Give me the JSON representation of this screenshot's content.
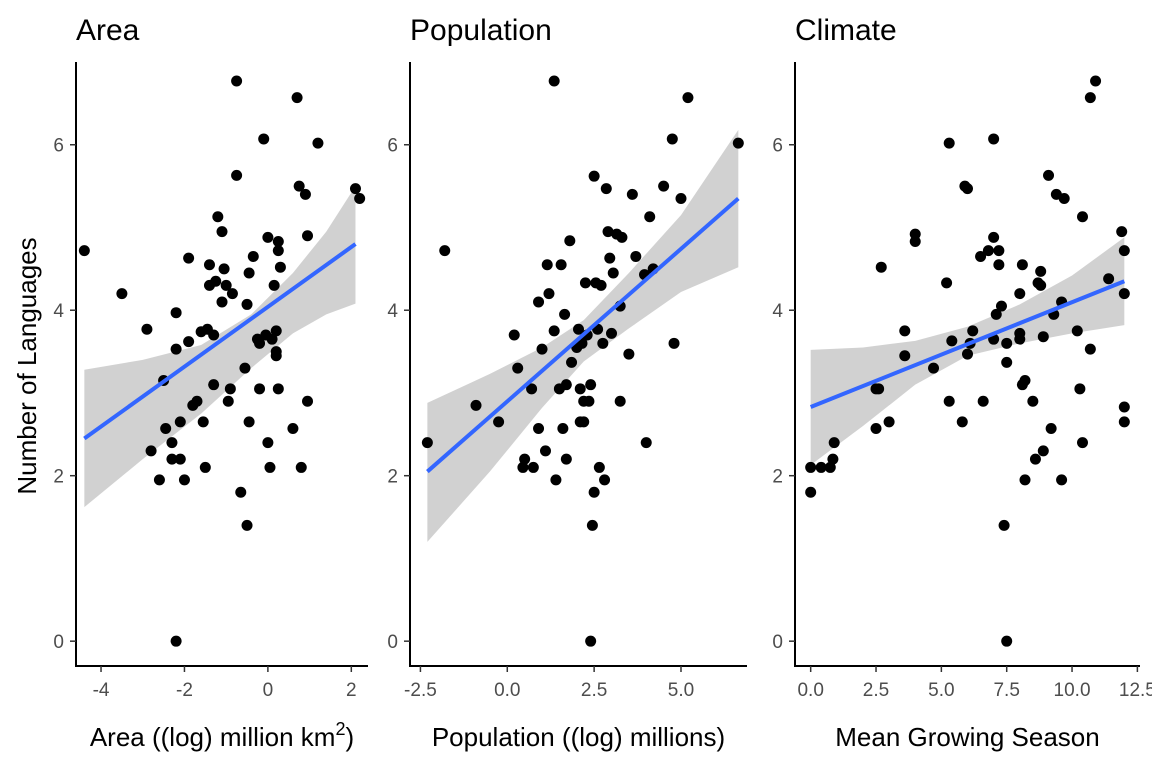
{
  "ylabel": "Number of Languages",
  "chart_data": [
    {
      "type": "scatter",
      "title": "Area",
      "xlabel_main": "Area ((log) million km",
      "xlabel_sup": "2",
      "xlabel_tail": ")",
      "ylabel": "Number of Languages",
      "xlim": [
        -4.6,
        2.4
      ],
      "ylim": [
        -0.3,
        7.0
      ],
      "xticks": [
        -4,
        -2,
        0,
        2
      ],
      "xtick_labels": [
        "-4",
        "-2",
        "0",
        "2"
      ],
      "yticks": [
        0,
        2,
        4,
        6
      ],
      "ytick_labels": [
        "0",
        "2",
        "4",
        "6"
      ],
      "fit": {
        "x": [
          -4.4,
          2.1
        ],
        "y": [
          2.45,
          4.8
        ]
      },
      "band": {
        "x": [
          -4.4,
          -3.0,
          -1.6,
          -0.4,
          0.6,
          1.4,
          2.1
        ],
        "upper": [
          3.28,
          3.4,
          3.58,
          3.95,
          4.45,
          4.95,
          5.5
        ],
        "lower": [
          1.62,
          2.2,
          2.75,
          3.3,
          3.72,
          3.95,
          4.08
        ]
      },
      "points": [
        {
          "x": -4.4,
          "y": 4.72
        },
        {
          "x": -3.5,
          "y": 4.2
        },
        {
          "x": -2.9,
          "y": 3.77
        },
        {
          "x": -2.8,
          "y": 2.3
        },
        {
          "x": -2.6,
          "y": 1.95
        },
        {
          "x": -2.5,
          "y": 3.15
        },
        {
          "x": -2.45,
          "y": 2.57
        },
        {
          "x": -2.3,
          "y": 2.2
        },
        {
          "x": -2.3,
          "y": 2.4
        },
        {
          "x": -2.2,
          "y": 3.53
        },
        {
          "x": -2.2,
          "y": 3.97
        },
        {
          "x": -2.1,
          "y": 2.2
        },
        {
          "x": -2.1,
          "y": 2.65
        },
        {
          "x": -2.2,
          "y": 0.0
        },
        {
          "x": -2.0,
          "y": 1.95
        },
        {
          "x": -1.9,
          "y": 3.62
        },
        {
          "x": -1.9,
          "y": 4.63
        },
        {
          "x": -1.8,
          "y": 2.85
        },
        {
          "x": -1.7,
          "y": 2.9
        },
        {
          "x": -1.6,
          "y": 3.74
        },
        {
          "x": -1.55,
          "y": 2.65
        },
        {
          "x": -1.5,
          "y": 2.1
        },
        {
          "x": -1.45,
          "y": 3.77
        },
        {
          "x": -1.4,
          "y": 4.3
        },
        {
          "x": -1.4,
          "y": 4.55
        },
        {
          "x": -1.3,
          "y": 3.7
        },
        {
          "x": -1.3,
          "y": 3.1
        },
        {
          "x": -1.25,
          "y": 4.35
        },
        {
          "x": -1.2,
          "y": 5.13
        },
        {
          "x": -1.1,
          "y": 4.95
        },
        {
          "x": -1.1,
          "y": 4.1
        },
        {
          "x": -1.05,
          "y": 4.5
        },
        {
          "x": -1.0,
          "y": 4.3
        },
        {
          "x": -0.95,
          "y": 2.9
        },
        {
          "x": -0.9,
          "y": 3.05
        },
        {
          "x": -0.85,
          "y": 4.2
        },
        {
          "x": -0.75,
          "y": 5.63
        },
        {
          "x": -0.75,
          "y": 6.77
        },
        {
          "x": -0.65,
          "y": 1.8
        },
        {
          "x": -0.55,
          "y": 3.3
        },
        {
          "x": -0.5,
          "y": 4.07
        },
        {
          "x": -0.5,
          "y": 1.4
        },
        {
          "x": -0.45,
          "y": 2.65
        },
        {
          "x": -0.45,
          "y": 4.45
        },
        {
          "x": -0.35,
          "y": 4.65
        },
        {
          "x": -0.25,
          "y": 3.65
        },
        {
          "x": -0.2,
          "y": 3.05
        },
        {
          "x": -0.2,
          "y": 3.6
        },
        {
          "x": -0.1,
          "y": 6.07
        },
        {
          "x": -0.05,
          "y": 3.7
        },
        {
          "x": 0.0,
          "y": 2.4
        },
        {
          "x": 0.0,
          "y": 4.88
        },
        {
          "x": 0.05,
          "y": 2.1
        },
        {
          "x": 0.1,
          "y": 3.65
        },
        {
          "x": 0.15,
          "y": 4.3
        },
        {
          "x": 0.2,
          "y": 3.5
        },
        {
          "x": 0.2,
          "y": 3.75
        },
        {
          "x": 0.2,
          "y": 3.45
        },
        {
          "x": 0.25,
          "y": 3.05
        },
        {
          "x": 0.25,
          "y": 4.72
        },
        {
          "x": 0.25,
          "y": 4.83
        },
        {
          "x": 0.3,
          "y": 4.52
        },
        {
          "x": 0.6,
          "y": 2.57
        },
        {
          "x": 0.7,
          "y": 6.57
        },
        {
          "x": 0.75,
          "y": 5.5
        },
        {
          "x": 0.8,
          "y": 2.1
        },
        {
          "x": 0.9,
          "y": 5.4
        },
        {
          "x": 0.95,
          "y": 2.9
        },
        {
          "x": 0.95,
          "y": 4.9
        },
        {
          "x": 1.2,
          "y": 6.02
        },
        {
          "x": 2.1,
          "y": 5.47
        },
        {
          "x": 2.2,
          "y": 5.35
        }
      ]
    },
    {
      "type": "scatter",
      "title": "Population",
      "xlabel_main": "Population ((log) millions)",
      "xlabel_sup": "",
      "xlabel_tail": "",
      "xlim": [
        -2.8,
        6.9
      ],
      "ylim": [
        -0.3,
        7.0
      ],
      "xticks": [
        -2.5,
        0,
        2.5,
        5
      ],
      "xtick_labels": [
        "-2.5",
        "0.0",
        "2.5",
        "5.0"
      ],
      "yticks": [
        0,
        2,
        4,
        6
      ],
      "ytick_labels": [
        "0",
        "2",
        "4",
        "6"
      ],
      "fit": {
        "x": [
          -2.3,
          6.65
        ],
        "y": [
          2.05,
          5.35
        ]
      },
      "band": {
        "x": [
          -2.3,
          -0.5,
          1.0,
          2.2,
          3.5,
          5.0,
          6.65
        ],
        "upper": [
          2.88,
          3.23,
          3.55,
          3.88,
          4.45,
          5.15,
          6.18
        ],
        "lower": [
          1.2,
          2.05,
          2.82,
          3.38,
          3.78,
          4.22,
          4.52
        ]
      },
      "points": [
        {
          "x": -2.3,
          "y": 2.4
        },
        {
          "x": -1.8,
          "y": 4.72
        },
        {
          "x": -0.9,
          "y": 2.85
        },
        {
          "x": -0.25,
          "y": 2.65
        },
        {
          "x": 0.2,
          "y": 3.7
        },
        {
          "x": 0.3,
          "y": 3.3
        },
        {
          "x": 0.45,
          "y": 2.1
        },
        {
          "x": 0.5,
          "y": 2.2
        },
        {
          "x": 0.7,
          "y": 3.05
        },
        {
          "x": 0.75,
          "y": 2.1
        },
        {
          "x": 0.9,
          "y": 4.1
        },
        {
          "x": 0.9,
          "y": 2.57
        },
        {
          "x": 1.0,
          "y": 3.53
        },
        {
          "x": 1.1,
          "y": 2.3
        },
        {
          "x": 1.15,
          "y": 4.55
        },
        {
          "x": 1.2,
          "y": 4.2
        },
        {
          "x": 1.35,
          "y": 6.77
        },
        {
          "x": 1.35,
          "y": 3.75
        },
        {
          "x": 1.4,
          "y": 1.95
        },
        {
          "x": 1.5,
          "y": 3.05
        },
        {
          "x": 1.55,
          "y": 4.55
        },
        {
          "x": 1.6,
          "y": 2.57
        },
        {
          "x": 1.65,
          "y": 3.95
        },
        {
          "x": 1.7,
          "y": 2.2
        },
        {
          "x": 1.7,
          "y": 3.1
        },
        {
          "x": 1.8,
          "y": 4.84
        },
        {
          "x": 1.85,
          "y": 3.37
        },
        {
          "x": 2.0,
          "y": 3.55
        },
        {
          "x": 2.05,
          "y": 3.77
        },
        {
          "x": 2.1,
          "y": 2.65
        },
        {
          "x": 2.1,
          "y": 3.05
        },
        {
          "x": 2.15,
          "y": 3.6
        },
        {
          "x": 2.2,
          "y": 2.9
        },
        {
          "x": 2.2,
          "y": 2.65
        },
        {
          "x": 2.25,
          "y": 4.33
        },
        {
          "x": 2.3,
          "y": 3.7
        },
        {
          "x": 2.35,
          "y": 2.9
        },
        {
          "x": 2.4,
          "y": 3.1
        },
        {
          "x": 2.4,
          "y": 0.0
        },
        {
          "x": 2.45,
          "y": 1.4
        },
        {
          "x": 2.5,
          "y": 5.62
        },
        {
          "x": 2.5,
          "y": 1.8
        },
        {
          "x": 2.55,
          "y": 4.33
        },
        {
          "x": 2.6,
          "y": 3.77
        },
        {
          "x": 2.65,
          "y": 2.1
        },
        {
          "x": 2.7,
          "y": 4.3
        },
        {
          "x": 2.75,
          "y": 3.6
        },
        {
          "x": 2.8,
          "y": 1.95
        },
        {
          "x": 2.85,
          "y": 5.47
        },
        {
          "x": 2.9,
          "y": 4.95
        },
        {
          "x": 2.95,
          "y": 4.63
        },
        {
          "x": 3.0,
          "y": 3.72
        },
        {
          "x": 3.05,
          "y": 4.45
        },
        {
          "x": 3.15,
          "y": 4.92
        },
        {
          "x": 3.25,
          "y": 4.05
        },
        {
          "x": 3.25,
          "y": 2.9
        },
        {
          "x": 3.3,
          "y": 4.88
        },
        {
          "x": 3.5,
          "y": 3.47
        },
        {
          "x": 3.6,
          "y": 5.4
        },
        {
          "x": 3.7,
          "y": 4.65
        },
        {
          "x": 3.95,
          "y": 4.43
        },
        {
          "x": 4.0,
          "y": 2.4
        },
        {
          "x": 4.1,
          "y": 5.13
        },
        {
          "x": 4.2,
          "y": 4.5
        },
        {
          "x": 4.5,
          "y": 5.5
        },
        {
          "x": 4.75,
          "y": 6.07
        },
        {
          "x": 4.8,
          "y": 3.6
        },
        {
          "x": 5.0,
          "y": 5.35
        },
        {
          "x": 5.2,
          "y": 6.57
        },
        {
          "x": 6.65,
          "y": 6.02
        }
      ]
    },
    {
      "type": "scatter",
      "title": "Climate",
      "xlabel_main": "Mean Growing Season",
      "xlabel_sup": "",
      "xlabel_tail": "",
      "xlim": [
        -0.6,
        12.6
      ],
      "ylim": [
        -0.3,
        7.0
      ],
      "xticks": [
        0,
        2.5,
        5,
        7.5,
        10,
        12.5
      ],
      "xtick_labels": [
        "0.0",
        "2.5",
        "5.0",
        "7.5",
        "10.0",
        "12.5"
      ],
      "yticks": [
        0,
        2,
        4,
        6
      ],
      "ytick_labels": [
        "0",
        "2",
        "4",
        "6"
      ],
      "fit": {
        "x": [
          0.0,
          12.0
        ],
        "y": [
          2.83,
          4.35
        ]
      },
      "band": {
        "x": [
          0.0,
          2.0,
          4.0,
          6.0,
          8.0,
          10.0,
          12.0
        ],
        "upper": [
          3.52,
          3.55,
          3.63,
          3.8,
          4.07,
          4.42,
          4.88
        ],
        "lower": [
          2.13,
          2.6,
          3.1,
          3.45,
          3.6,
          3.72,
          3.82
        ]
      },
      "points": [
        {
          "x": 0.0,
          "y": 1.8
        },
        {
          "x": 0.0,
          "y": 2.1
        },
        {
          "x": 0.4,
          "y": 2.1
        },
        {
          "x": 0.75,
          "y": 2.1
        },
        {
          "x": 0.85,
          "y": 2.2
        },
        {
          "x": 0.9,
          "y": 2.4
        },
        {
          "x": 2.5,
          "y": 2.57
        },
        {
          "x": 2.5,
          "y": 3.05
        },
        {
          "x": 2.6,
          "y": 3.05
        },
        {
          "x": 2.7,
          "y": 4.52
        },
        {
          "x": 3.0,
          "y": 2.65
        },
        {
          "x": 3.6,
          "y": 3.45
        },
        {
          "x": 3.6,
          "y": 3.75
        },
        {
          "x": 4.0,
          "y": 4.83
        },
        {
          "x": 4.0,
          "y": 4.92
        },
        {
          "x": 4.7,
          "y": 3.3
        },
        {
          "x": 5.2,
          "y": 4.33
        },
        {
          "x": 5.3,
          "y": 6.02
        },
        {
          "x": 5.3,
          "y": 2.9
        },
        {
          "x": 5.4,
          "y": 3.63
        },
        {
          "x": 5.8,
          "y": 2.65
        },
        {
          "x": 5.9,
          "y": 5.5
        },
        {
          "x": 6.0,
          "y": 5.47
        },
        {
          "x": 6.0,
          "y": 3.47
        },
        {
          "x": 6.1,
          "y": 3.6
        },
        {
          "x": 6.2,
          "y": 3.75
        },
        {
          "x": 6.5,
          "y": 4.65
        },
        {
          "x": 6.6,
          "y": 2.9
        },
        {
          "x": 6.8,
          "y": 4.72
        },
        {
          "x": 7.0,
          "y": 6.07
        },
        {
          "x": 7.0,
          "y": 4.88
        },
        {
          "x": 7.0,
          "y": 3.65
        },
        {
          "x": 7.1,
          "y": 3.95
        },
        {
          "x": 7.2,
          "y": 4.55
        },
        {
          "x": 7.2,
          "y": 4.72
        },
        {
          "x": 7.3,
          "y": 4.05
        },
        {
          "x": 7.4,
          "y": 1.4
        },
        {
          "x": 7.5,
          "y": 3.37
        },
        {
          "x": 7.5,
          "y": 0.0
        },
        {
          "x": 7.5,
          "y": 3.6
        },
        {
          "x": 8.0,
          "y": 3.72
        },
        {
          "x": 8.0,
          "y": 4.2
        },
        {
          "x": 8.0,
          "y": 3.65
        },
        {
          "x": 8.1,
          "y": 4.55
        },
        {
          "x": 8.1,
          "y": 3.1
        },
        {
          "x": 8.2,
          "y": 1.95
        },
        {
          "x": 8.2,
          "y": 3.15
        },
        {
          "x": 8.5,
          "y": 2.9
        },
        {
          "x": 8.6,
          "y": 2.2
        },
        {
          "x": 8.7,
          "y": 4.33
        },
        {
          "x": 8.8,
          "y": 4.3
        },
        {
          "x": 8.8,
          "y": 4.47
        },
        {
          "x": 8.9,
          "y": 2.3
        },
        {
          "x": 8.9,
          "y": 3.68
        },
        {
          "x": 9.1,
          "y": 5.63
        },
        {
          "x": 9.2,
          "y": 2.57
        },
        {
          "x": 9.3,
          "y": 3.95
        },
        {
          "x": 9.4,
          "y": 5.4
        },
        {
          "x": 9.6,
          "y": 1.95
        },
        {
          "x": 9.6,
          "y": 4.1
        },
        {
          "x": 9.7,
          "y": 5.35
        },
        {
          "x": 10.2,
          "y": 3.75
        },
        {
          "x": 10.3,
          "y": 3.05
        },
        {
          "x": 10.4,
          "y": 2.4
        },
        {
          "x": 10.4,
          "y": 5.13
        },
        {
          "x": 10.7,
          "y": 3.53
        },
        {
          "x": 10.7,
          "y": 6.57
        },
        {
          "x": 10.9,
          "y": 6.77
        },
        {
          "x": 11.4,
          "y": 4.38
        },
        {
          "x": 11.9,
          "y": 4.95
        },
        {
          "x": 12.0,
          "y": 2.65
        },
        {
          "x": 12.0,
          "y": 2.83
        },
        {
          "x": 12.0,
          "y": 4.72
        },
        {
          "x": 12.0,
          "y": 4.2
        }
      ]
    }
  ]
}
